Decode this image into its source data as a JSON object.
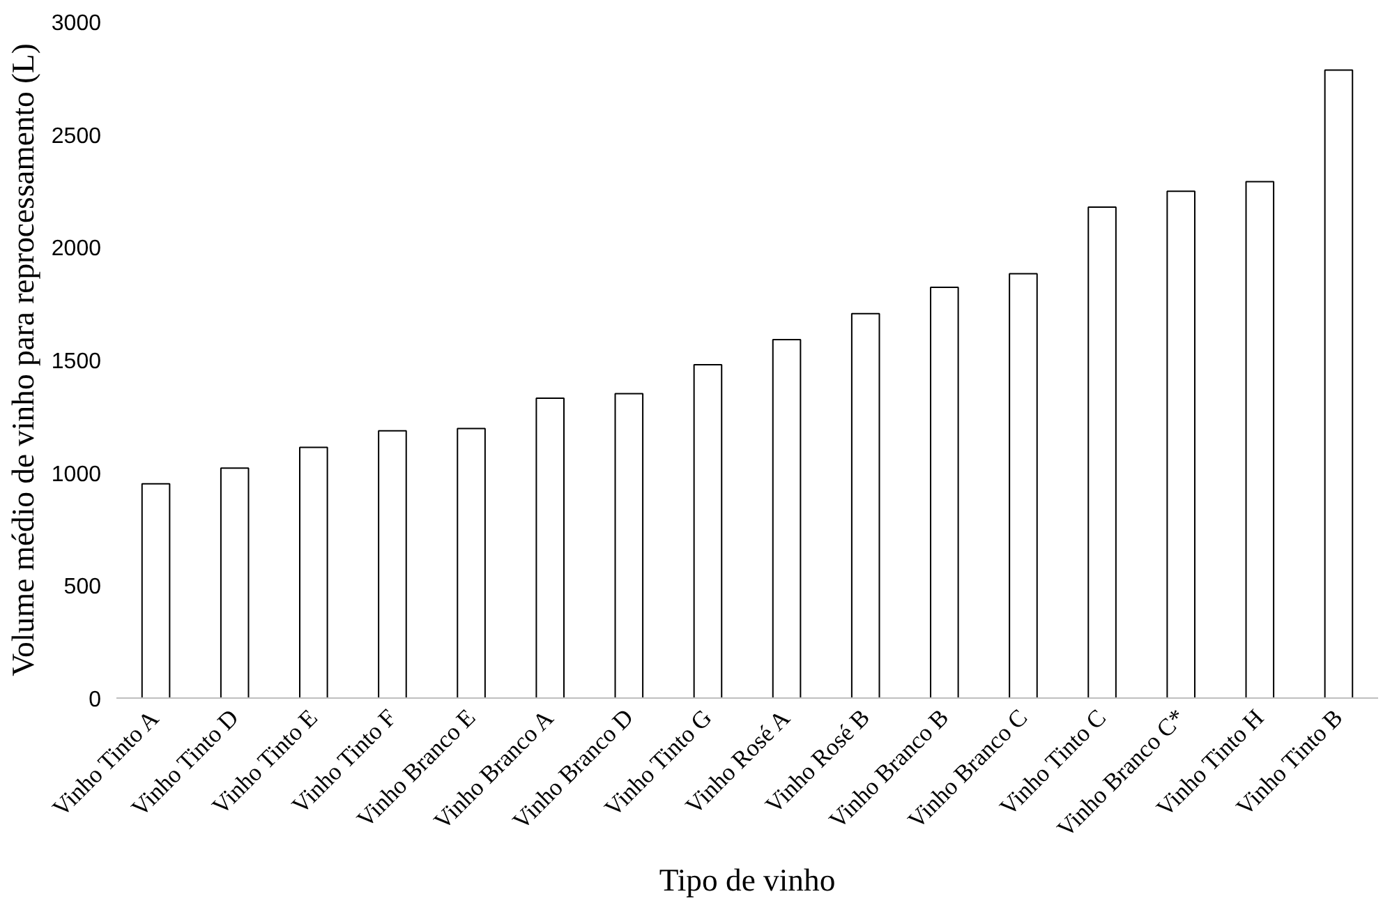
{
  "chart_data": {
    "type": "bar",
    "xlabel": "Tipo de vinho",
    "ylabel": "Volume médio de vinho para reprocessamento (L)",
    "categories": [
      "Vinho Tinto A",
      "Vinho Tinto D",
      "Vinho Tinto E",
      "Vinho Tinto F",
      "Vinho Branco E",
      "Vinho Branco A",
      "Vinho Branco D",
      "Vinho Tinto G",
      "Vinho Rosé A",
      "Vinho Rosé B",
      "Vinho Branco B",
      "Vinho Branco C",
      "Vinho Tinto C",
      "Vinho Branco C*",
      "Vinho Tinto H",
      "Vinho Tinto B"
    ],
    "values": [
      950,
      1020,
      1112,
      1185,
      1195,
      1330,
      1350,
      1478,
      1590,
      1705,
      1822,
      1882,
      2177,
      2248,
      2290,
      2785
    ],
    "color": "#ffffff",
    "ylim": [
      0,
      3000
    ],
    "yticks": [
      0,
      500,
      1000,
      1500,
      2000,
      2500,
      3000
    ],
    "grid": false
  }
}
